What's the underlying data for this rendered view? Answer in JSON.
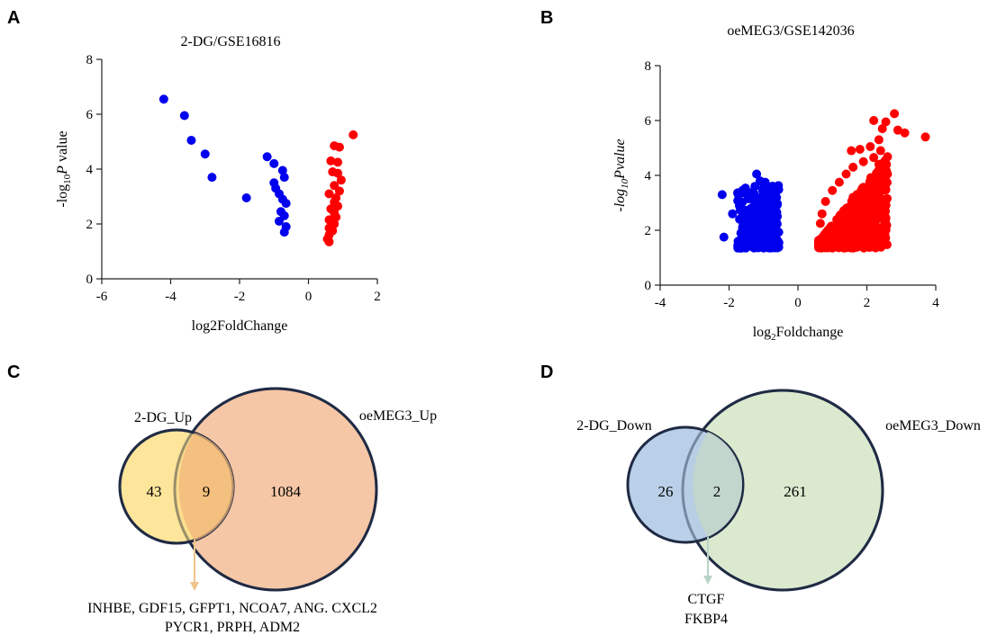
{
  "panels": {
    "a": "A",
    "b": "B",
    "c": "C",
    "d": "D"
  },
  "colors": {
    "up": "#ff0000",
    "down": "#0000ee",
    "venn_up_small": "#fde08a",
    "venn_up_big": "#f5c7a6",
    "venn_down_small": "#b2cbe6",
    "venn_down_big": "#dbe9cf",
    "outline": "#1f2a44"
  },
  "chart_data": [
    {
      "type": "scatter",
      "title": "2-DG/GSE16816",
      "xlabel": "log2FoldChange",
      "ylabel_pre": "-log",
      "ylabel_sub": "10",
      "ylabel_it": "P",
      "ylabel_post": " value",
      "xlim": [
        -6,
        2
      ],
      "ylim": [
        0,
        8
      ],
      "xticks": [
        "-6",
        "-4",
        "-2",
        "0",
        "2"
      ],
      "yticks": [
        "0",
        "2",
        "4",
        "6",
        "8"
      ],
      "series": [
        {
          "color": "down",
          "points": [
            [
              -4.2,
              6.55
            ],
            [
              -3.6,
              5.95
            ],
            [
              -3.4,
              5.05
            ],
            [
              -3.0,
              4.55
            ],
            [
              -2.8,
              3.7
            ],
            [
              -1.8,
              2.95
            ],
            [
              -1.2,
              4.45
            ],
            [
              -1.0,
              4.2
            ],
            [
              -0.75,
              3.95
            ],
            [
              -0.7,
              3.7
            ],
            [
              -1.0,
              3.5
            ],
            [
              -0.95,
              3.3
            ],
            [
              -0.85,
              3.1
            ],
            [
              -0.75,
              2.9
            ],
            [
              -0.65,
              2.75
            ],
            [
              -0.8,
              2.45
            ],
            [
              -0.7,
              2.3
            ],
            [
              -0.85,
              2.1
            ],
            [
              -0.65,
              1.9
            ],
            [
              -0.7,
              1.7
            ]
          ]
        },
        {
          "color": "up",
          "points": [
            [
              1.3,
              5.25
            ],
            [
              0.75,
              4.85
            ],
            [
              0.9,
              4.8
            ],
            [
              0.65,
              4.3
            ],
            [
              0.85,
              4.25
            ],
            [
              0.7,
              3.9
            ],
            [
              0.85,
              3.85
            ],
            [
              0.95,
              3.6
            ],
            [
              0.75,
              3.4
            ],
            [
              0.9,
              3.2
            ],
            [
              0.6,
              3.1
            ],
            [
              0.8,
              2.95
            ],
            [
              0.75,
              2.8
            ],
            [
              0.85,
              2.65
            ],
            [
              0.65,
              2.55
            ],
            [
              0.75,
              2.4
            ],
            [
              0.8,
              2.25
            ],
            [
              0.6,
              2.15
            ],
            [
              0.75,
              2.0
            ],
            [
              0.6,
              1.85
            ],
            [
              0.7,
              1.75
            ],
            [
              0.6,
              1.6
            ],
            [
              0.55,
              1.45
            ],
            [
              0.6,
              1.35
            ]
          ]
        }
      ]
    },
    {
      "type": "scatter",
      "title": "oeMEG3/GSE142036",
      "xlabel_pre": "log",
      "xlabel_sub": "2",
      "xlabel_post": "Foldchange",
      "ylabel_pre": "-log",
      "ylabel_sub": "10",
      "ylabel_it": "Pvalue",
      "xlim": [
        -4,
        4
      ],
      "ylim": [
        0,
        8
      ],
      "xticks": [
        "-4",
        "-2",
        "0",
        "2",
        "4"
      ],
      "yticks": [
        "0",
        "2",
        "4",
        "6",
        "8"
      ],
      "series": [
        {
          "color": "down",
          "points": [
            [
              -2.2,
              3.3
            ],
            [
              -2.15,
              1.75
            ],
            [
              -1.9,
              2.6
            ],
            [
              -1.7,
              2.9
            ],
            [
              -1.6,
              2.4
            ],
            [
              -1.55,
              1.5
            ],
            [
              -1.4,
              1.8
            ],
            [
              -1.35,
              2.2
            ],
            [
              -1.3,
              3.1
            ],
            [
              -1.25,
              3.6
            ],
            [
              -1.2,
              4.05
            ],
            [
              -1.1,
              3.8
            ],
            [
              -0.95,
              3.75
            ],
            [
              -0.85,
              3.3
            ],
            [
              -0.7,
              3.0
            ],
            [
              -0.6,
              2.5
            ]
          ]
        },
        {
          "color": "up",
          "points": [
            [
              2.8,
              6.25
            ],
            [
              3.7,
              5.4
            ],
            [
              2.9,
              5.65
            ],
            [
              2.55,
              5.95
            ],
            [
              2.2,
              6.0
            ],
            [
              2.45,
              5.7
            ],
            [
              3.1,
              5.55
            ],
            [
              2.35,
              5.3
            ],
            [
              2.1,
              5.05
            ],
            [
              2.4,
              4.9
            ],
            [
              1.8,
              4.95
            ],
            [
              1.55,
              4.9
            ],
            [
              2.2,
              4.65
            ],
            [
              1.9,
              4.5
            ],
            [
              2.35,
              4.4
            ],
            [
              2.6,
              4.05
            ],
            [
              2.5,
              3.6
            ],
            [
              1.6,
              4.3
            ],
            [
              1.4,
              4.05
            ],
            [
              1.2,
              3.75
            ],
            [
              1.0,
              3.45
            ],
            [
              0.8,
              3.05
            ],
            [
              0.7,
              2.6
            ],
            [
              0.65,
              2.25
            ],
            [
              1.6,
              3.2
            ],
            [
              1.9,
              3.4
            ]
          ]
        }
      ]
    }
  ],
  "venn": [
    {
      "left_label": "2-DG_Up",
      "right_label": "oeMEG3_Up",
      "left_only": "43",
      "overlap": "9",
      "right_only": "1084",
      "genes": [
        "INHBE, GDF15, GFPT1, NCOA7, ANG. CXCL2",
        "PYCR1, PRPH, ADM2"
      ]
    },
    {
      "left_label": "2-DG_Down",
      "right_label": "oeMEG3_Down",
      "left_only": "26",
      "overlap": "2",
      "right_only": "261",
      "genes": [
        "CTGF",
        "FKBP4"
      ]
    }
  ]
}
